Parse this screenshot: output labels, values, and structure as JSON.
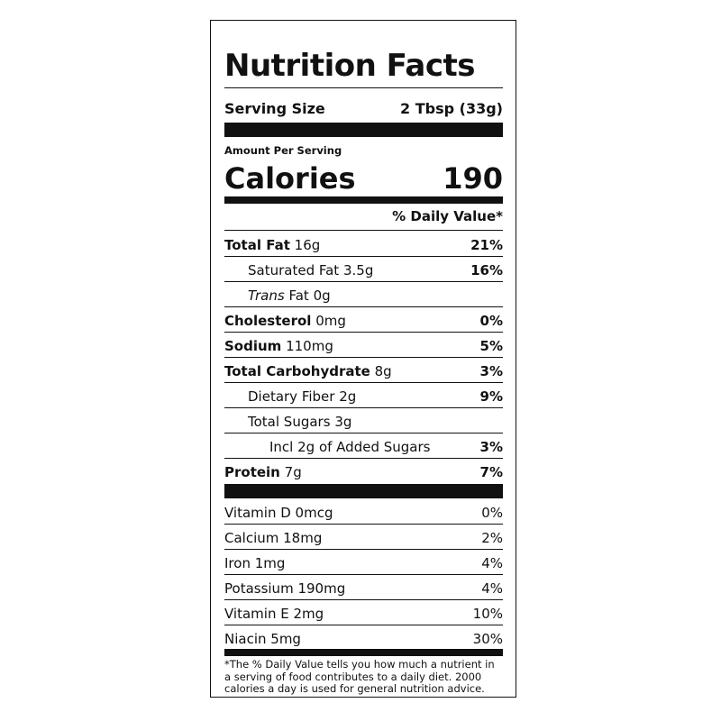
{
  "title": "Nutrition Facts",
  "serving": {
    "label": "Serving Size",
    "value": "2 Tbsp (33g)"
  },
  "amount_per_serving": "Amount Per Serving",
  "calories": {
    "label": "Calories",
    "value": "190"
  },
  "daily_value_header": "% Daily Value*",
  "nutrients": [
    {
      "name": "Total Fat",
      "amount": "16g",
      "dv": "21%"
    },
    {
      "name": "Saturated Fat",
      "amount": "3.5g",
      "dv": "16%"
    },
    {
      "name_italic": "Trans",
      "name": "Fat",
      "amount": "0g",
      "dv": ""
    },
    {
      "name": "Cholesterol",
      "amount": "0mg",
      "dv": "0%"
    },
    {
      "name": "Sodium",
      "amount": "110mg",
      "dv": "5%"
    },
    {
      "name": "Total Carbohydrate",
      "amount": "8g",
      "dv": "3%"
    },
    {
      "name": "Dietary Fiber",
      "amount": "2g",
      "dv": "9%"
    },
    {
      "name": "Total Sugars",
      "amount": "3g",
      "dv": ""
    },
    {
      "name": "Incl 2g of Added Sugars",
      "dv": "3%"
    },
    {
      "name": "Protein",
      "amount": "7g",
      "dv": "7%"
    }
  ],
  "vitamins": [
    {
      "label": "Vitamin D 0mcg",
      "dv": "0%"
    },
    {
      "label": "Calcium 18mg",
      "dv": "2%"
    },
    {
      "label": "Iron 1mg",
      "dv": "4%"
    },
    {
      "label": "Potassium 190mg",
      "dv": "4%"
    },
    {
      "label": "Vitamin E 2mg",
      "dv": "10%"
    },
    {
      "label": "Niacin 5mg",
      "dv": "30%"
    }
  ],
  "footnote": "*The % Daily Value tells you how much a nutrient in a serving of food contributes to a daily diet. 2000 calories a day is used for general nutrition advice."
}
